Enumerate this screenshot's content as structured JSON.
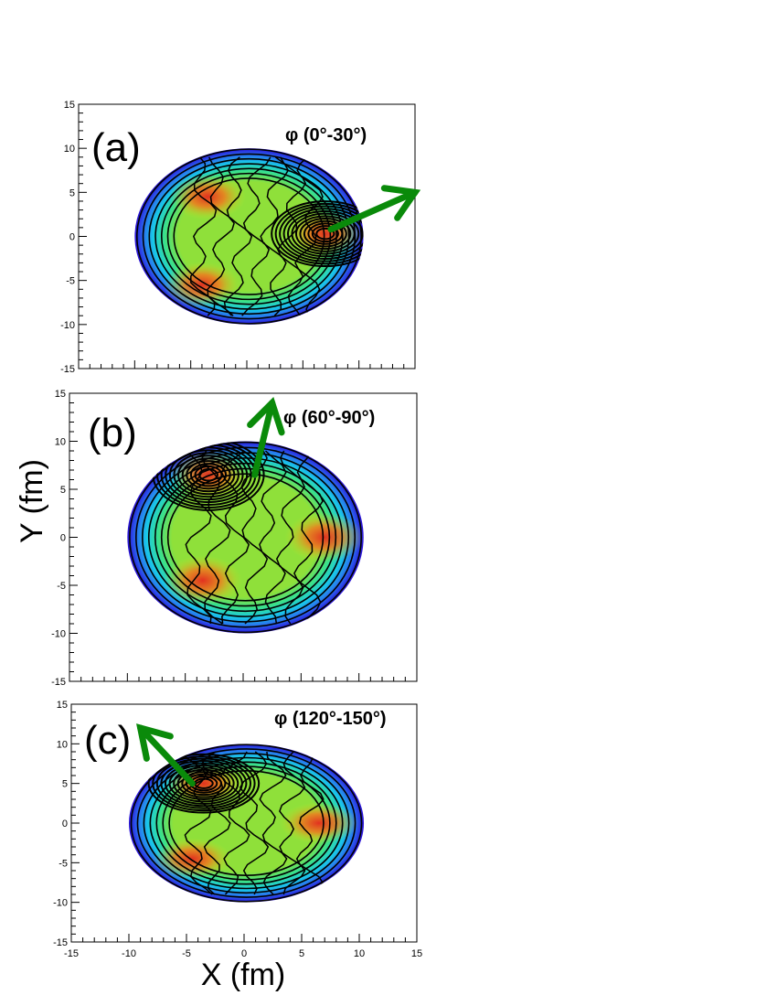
{
  "figure": {
    "y_axis_title": "Y (fm)",
    "x_axis_title": "X (fm)"
  },
  "colors": {
    "arrow": "#0a8a0a",
    "contour": "#000000",
    "colormap": [
      "#2a0fd6",
      "#2a6af0",
      "#19c8e8",
      "#3ae08a",
      "#9be632",
      "#c8e624",
      "#f0b81e",
      "#f07a1e",
      "#e6281e"
    ]
  },
  "chart_data": [
    {
      "type": "heatmap",
      "panel_label": "(a)",
      "phi_range": "φ (0°-30°)",
      "xlim": [
        -15,
        15
      ],
      "ylim": [
        -15,
        15
      ],
      "x_ticks": [],
      "y_ticks": [
        "15",
        "10",
        "5",
        "0",
        "-5",
        "-10",
        "-15"
      ],
      "arrow": {
        "from": [
          7.5,
          0.8
        ],
        "to": [
          15,
          5
        ]
      },
      "hot_spots": [
        [
          -3.5,
          4.5
        ],
        [
          -4,
          -5.5
        ],
        [
          7,
          0.3
        ]
      ]
    },
    {
      "type": "heatmap",
      "panel_label": "(b)",
      "phi_range": "φ (60°-90°)",
      "xlim": [
        -15,
        15
      ],
      "ylim": [
        -15,
        15
      ],
      "x_ticks": [],
      "y_ticks": [
        "15",
        "10",
        "5",
        "0",
        "-5",
        "-10",
        "-15"
      ],
      "arrow": {
        "from": [
          1,
          6.5
        ],
        "to": [
          2.5,
          14
        ]
      },
      "hot_spots": [
        [
          -3,
          6.5
        ],
        [
          -3.5,
          -4.5
        ],
        [
          7,
          0
        ]
      ]
    },
    {
      "type": "heatmap",
      "panel_label": "(c)",
      "phi_range": "φ (120°-150°)",
      "xlim": [
        -15,
        15
      ],
      "ylim": [
        -15,
        15
      ],
      "x_ticks": [
        "-15",
        "-10",
        "-5",
        "0",
        "5",
        "10",
        "15"
      ],
      "y_ticks": [
        "15",
        "10",
        "5",
        "0",
        "-5",
        "-10",
        "-15"
      ],
      "arrow": {
        "from": [
          -4.5,
          5
        ],
        "to": [
          -9,
          12
        ]
      },
      "hot_spots": [
        [
          -3.5,
          5
        ],
        [
          -4.5,
          -4.5
        ],
        [
          6.5,
          0
        ]
      ]
    }
  ]
}
